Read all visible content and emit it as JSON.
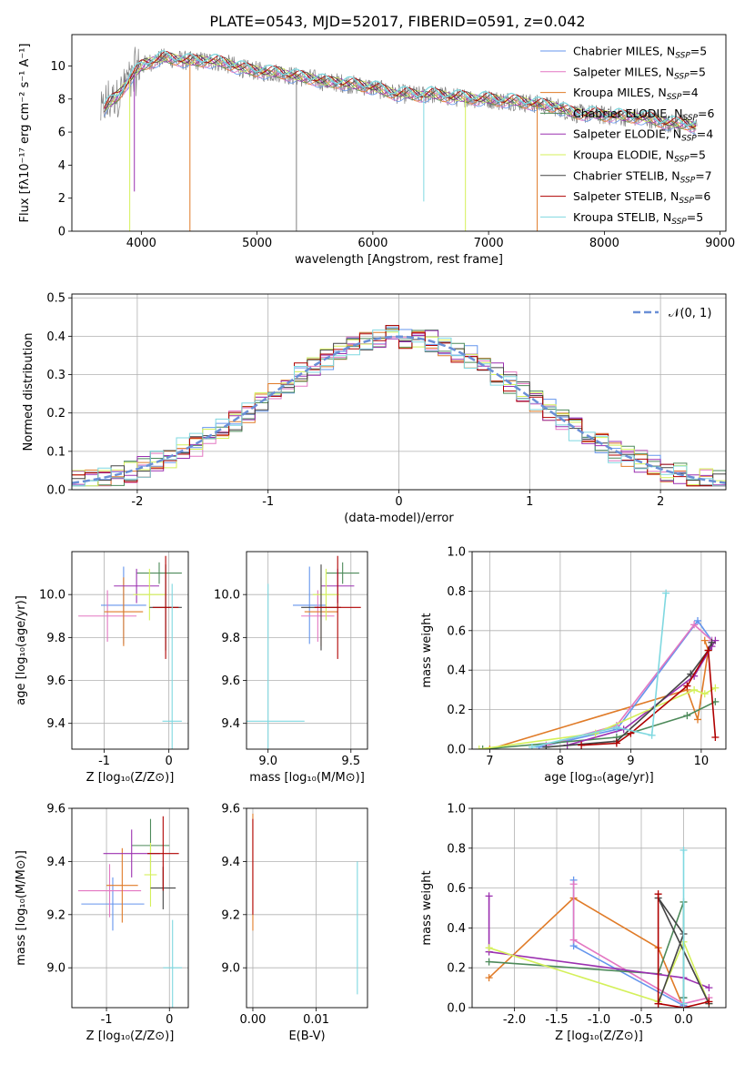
{
  "figure_title": "PLATE=0543, MJD=52017, FIBERID=0591, z=0.042",
  "colors": {
    "chabrier_miles": "#6495ed",
    "salpeter_miles": "#e377c2",
    "kroupa_miles": "#e07b28",
    "chabrier_elodie": "#4d8a5a",
    "salpeter_elodie": "#9b30b0",
    "kroupa_elodie": "#d4f05a",
    "chabrier_stelib": "#444444",
    "salpeter_stelib": "#b00000",
    "kroupa_stelib": "#7fd8e0",
    "data": "#808080",
    "gauss": "#6a8fd6"
  },
  "chart_data": [
    {
      "id": "spectrum",
      "type": "line",
      "xlabel": "wavelength [Angstrom, rest frame]",
      "ylabel": "Flux [fλ10⁻¹⁷ erg cm⁻² s⁻¹ A⁻¹]",
      "xlim": [
        3400,
        9050
      ],
      "ylim": [
        0,
        11.9
      ],
      "xticks": [
        4000,
        5000,
        6000,
        7000,
        8000,
        9000
      ],
      "yticks": [
        0,
        2,
        4,
        6,
        8,
        10
      ],
      "grid": false,
      "legend_position": "top-right",
      "continuum": {
        "x": [
          3650,
          3700,
          3800,
          3900,
          4000,
          4100,
          4200,
          4300,
          4400,
          4500,
          4600,
          4700,
          4800,
          4900,
          5000,
          5100,
          5200,
          5300,
          5400,
          5500,
          5600,
          5700,
          5800,
          5900,
          6000,
          6100,
          6200,
          6300,
          6400,
          6500,
          6600,
          6700,
          6800,
          6900,
          7000,
          7100,
          7200,
          7300,
          7400,
          7500,
          7600,
          7700,
          7800,
          7900,
          8000,
          8100,
          8200,
          8300,
          8400,
          8500,
          8600,
          8700,
          8800
        ],
        "y": [
          7.0,
          7.6,
          8.2,
          9.2,
          10.0,
          10.3,
          10.5,
          10.4,
          10.3,
          10.3,
          10.3,
          10.2,
          10.0,
          9.8,
          9.7,
          9.6,
          9.6,
          9.4,
          9.3,
          9.2,
          9.0,
          9.0,
          8.9,
          8.8,
          8.7,
          8.5,
          8.3,
          8.3,
          8.2,
          8.3,
          8.2,
          8.1,
          8.1,
          8.0,
          8.0,
          7.9,
          7.9,
          7.8,
          7.7,
          7.6,
          7.5,
          7.2,
          7.1,
          7.1,
          7.0,
          7.0,
          6.9,
          6.9,
          6.8,
          6.6,
          6.5,
          6.5,
          6.3
        ]
      },
      "series": [
        {
          "name": "Chabrier MILES",
          "nssp": 5,
          "color_key": "chabrier_miles"
        },
        {
          "name": "Salpeter MILES",
          "nssp": 5,
          "color_key": "salpeter_miles"
        },
        {
          "name": "Kroupa MILES",
          "nssp": 4,
          "color_key": "kroupa_miles"
        },
        {
          "name": "Chabrier ELODIE",
          "nssp": 6,
          "color_key": "chabrier_elodie"
        },
        {
          "name": "Salpeter ELODIE",
          "nssp": 4,
          "color_key": "salpeter_elodie"
        },
        {
          "name": "Kroupa ELODIE",
          "nssp": 5,
          "color_key": "kroupa_elodie"
        },
        {
          "name": "Chabrier STELIB",
          "nssp": 7,
          "color_key": "chabrier_stelib"
        },
        {
          "name": "Salpeter STELIB",
          "nssp": 6,
          "color_key": "salpeter_stelib"
        },
        {
          "name": "Kroupa STELIB",
          "nssp": 5,
          "color_key": "kroupa_stelib"
        }
      ]
    },
    {
      "id": "residuals",
      "type": "histogram",
      "xlabel": "(data-model)/error",
      "ylabel": "Normed distribution",
      "xlim": [
        -2.5,
        2.5
      ],
      "ylim": [
        0,
        0.51
      ],
      "xticks": [
        -2,
        -1,
        0,
        1,
        2
      ],
      "yticks": [
        0.0,
        0.1,
        0.2,
        0.3,
        0.4,
        0.5
      ],
      "grid": true,
      "legend": "𝒩(0, 1)",
      "legend_position": "top-right",
      "bin_width": 0.1
    },
    {
      "id": "age_vs_Z",
      "type": "errorbar",
      "xlabel": "Z [log₁₀(Z/Z⊙)]",
      "ylabel": "age  [log₁₀(age/yr)]",
      "xlim": [
        -1.5,
        0.3
      ],
      "ylim": [
        9.28,
        10.2
      ],
      "xticks": [
        -1,
        0
      ],
      "yticks": [
        9.4,
        9.6,
        9.8,
        10.0
      ],
      "points": [
        {
          "x": -0.7,
          "y": 9.95,
          "xerr": 0.35,
          "yerr": 0.18,
          "color_key": "chabrier_miles"
        },
        {
          "x": -0.95,
          "y": 9.9,
          "xerr": 0.45,
          "yerr": 0.12,
          "color_key": "salpeter_miles"
        },
        {
          "x": -0.7,
          "y": 9.92,
          "xerr": 0.3,
          "yerr": 0.16,
          "color_key": "kroupa_miles"
        },
        {
          "x": -0.15,
          "y": 10.1,
          "xerr": 0.35,
          "yerr": 0.05,
          "color_key": "chabrier_elodie"
        },
        {
          "x": -0.5,
          "y": 10.04,
          "xerr": 0.35,
          "yerr": 0.08,
          "color_key": "salpeter_elodie"
        },
        {
          "x": -0.3,
          "y": 10.0,
          "xerr": 0.25,
          "yerr": 0.12,
          "color_key": "kroupa_elodie"
        },
        {
          "x": -0.05,
          "y": 9.94,
          "xerr": 0.25,
          "yerr": 0.2,
          "color_key": "chabrier_stelib"
        },
        {
          "x": -0.05,
          "y": 9.94,
          "xerr": 0.2,
          "yerr": 0.24,
          "color_key": "salpeter_stelib"
        },
        {
          "x": 0.05,
          "y": 9.41,
          "xerr": 0.15,
          "yerr": 0.64,
          "color_key": "kroupa_stelib"
        }
      ]
    },
    {
      "id": "age_vs_mass",
      "type": "errorbar",
      "xlabel": "mass [log₁₀(M/M⊙)]",
      "ylabel": "",
      "xlim": [
        8.87,
        9.6
      ],
      "ylim": [
        9.28,
        10.2
      ],
      "xticks": [
        9.0,
        9.5
      ],
      "yticks": [
        9.4,
        9.6,
        9.8,
        10.0
      ],
      "points": [
        {
          "x": 9.25,
          "y": 9.95,
          "xerr": 0.1,
          "yerr": 0.18,
          "color_key": "chabrier_miles"
        },
        {
          "x": 9.3,
          "y": 9.9,
          "xerr": 0.1,
          "yerr": 0.12,
          "color_key": "salpeter_miles"
        },
        {
          "x": 9.32,
          "y": 9.92,
          "xerr": 0.1,
          "yerr": 0.16,
          "color_key": "kroupa_miles"
        },
        {
          "x": 9.45,
          "y": 10.1,
          "xerr": 0.1,
          "yerr": 0.05,
          "color_key": "chabrier_elodie"
        },
        {
          "x": 9.42,
          "y": 10.04,
          "xerr": 0.1,
          "yerr": 0.08,
          "color_key": "salpeter_elodie"
        },
        {
          "x": 9.35,
          "y": 10.0,
          "xerr": 0.08,
          "yerr": 0.12,
          "color_key": "kroupa_elodie"
        },
        {
          "x": 9.32,
          "y": 9.94,
          "xerr": 0.12,
          "yerr": 0.2,
          "color_key": "chabrier_stelib"
        },
        {
          "x": 9.42,
          "y": 9.94,
          "xerr": 0.14,
          "yerr": 0.24,
          "color_key": "salpeter_stelib"
        },
        {
          "x": 9.0,
          "y": 9.41,
          "xerr": 0.22,
          "yerr": 0.64,
          "color_key": "kroupa_stelib"
        }
      ]
    },
    {
      "id": "weight_vs_age",
      "type": "line",
      "xlabel": "age  [log₁₀(age/yr)]",
      "ylabel": "mass weight",
      "xlim": [
        6.75,
        10.35
      ],
      "ylim": [
        0,
        1.0
      ],
      "xticks": [
        7,
        8,
        9,
        10
      ],
      "yticks": [
        0.0,
        0.2,
        0.4,
        0.6,
        0.8,
        1.0
      ],
      "series": [
        {
          "color_key": "kroupa_miles",
          "x": [
            7.0,
            9.8,
            9.95,
            10.1,
            10.05
          ],
          "y": [
            0.0,
            0.3,
            0.15,
            0.5,
            0.55
          ]
        },
        {
          "color_key": "chabrier_miles",
          "x": [
            7.7,
            8.8,
            9.95,
            10.15
          ],
          "y": [
            0.01,
            0.1,
            0.65,
            0.55
          ]
        },
        {
          "color_key": "salpeter_miles",
          "x": [
            7.8,
            8.8,
            9.9,
            10.15
          ],
          "y": [
            0.02,
            0.12,
            0.63,
            0.55
          ]
        },
        {
          "color_key": "chabrier_elodie",
          "x": [
            6.9,
            8.8,
            9.8,
            10.2
          ],
          "y": [
            0.0,
            0.06,
            0.17,
            0.24
          ]
        },
        {
          "color_key": "salpeter_elodie",
          "x": [
            8.1,
            8.9,
            9.9,
            10.15,
            10.2
          ],
          "y": [
            0.02,
            0.1,
            0.37,
            0.52,
            0.55
          ]
        },
        {
          "color_key": "kroupa_elodie",
          "x": [
            6.85,
            8.5,
            9.9,
            10.05,
            10.2
          ],
          "y": [
            0.0,
            0.08,
            0.3,
            0.28,
            0.31
          ]
        },
        {
          "color_key": "chabrier_stelib",
          "x": [
            7.8,
            8.8,
            9.85,
            10.1,
            10.15
          ],
          "y": [
            0.01,
            0.04,
            0.38,
            0.5,
            0.54
          ]
        },
        {
          "color_key": "salpeter_stelib",
          "x": [
            8.3,
            8.8,
            9.0,
            9.8,
            10.1,
            10.2
          ],
          "y": [
            0.02,
            0.03,
            0.08,
            0.32,
            0.5,
            0.06
          ]
        },
        {
          "color_key": "kroupa_stelib",
          "x": [
            7.6,
            8.8,
            9.3,
            9.5
          ],
          "y": [
            0.01,
            0.11,
            0.07,
            0.79
          ]
        }
      ]
    },
    {
      "id": "mass_vs_Z",
      "type": "errorbar",
      "xlabel": "Z [log₁₀(Z/Z⊙)]",
      "ylabel": "mass [log₁₀(M/M⊙)]",
      "xlim": [
        -1.55,
        0.3
      ],
      "ylim": [
        8.85,
        9.6
      ],
      "xticks": [
        -1,
        0
      ],
      "yticks": [
        9.0,
        9.2,
        9.4,
        9.6
      ],
      "points": [
        {
          "x": -0.9,
          "y": 9.24,
          "xerr": 0.5,
          "yerr": 0.1,
          "color_key": "chabrier_miles"
        },
        {
          "x": -0.95,
          "y": 9.29,
          "xerr": 0.5,
          "yerr": 0.1,
          "color_key": "salpeter_miles"
        },
        {
          "x": -0.75,
          "y": 9.31,
          "xerr": 0.25,
          "yerr": 0.14,
          "color_key": "kroupa_miles"
        },
        {
          "x": -0.3,
          "y": 9.46,
          "xerr": 0.3,
          "yerr": 0.1,
          "color_key": "chabrier_elodie"
        },
        {
          "x": -0.6,
          "y": 9.43,
          "xerr": 0.45,
          "yerr": 0.09,
          "color_key": "salpeter_elodie"
        },
        {
          "x": -0.3,
          "y": 9.35,
          "xerr": 0.1,
          "yerr": 0.12,
          "color_key": "kroupa_elodie"
        },
        {
          "x": -0.1,
          "y": 9.3,
          "xerr": 0.2,
          "yerr": 0.08,
          "color_key": "chabrier_stelib"
        },
        {
          "x": -0.1,
          "y": 9.43,
          "xerr": 0.25,
          "yerr": 0.14,
          "color_key": "salpeter_stelib"
        },
        {
          "x": 0.05,
          "y": 9.0,
          "xerr": 0.15,
          "yerr": 0.18,
          "color_key": "kroupa_stelib"
        }
      ]
    },
    {
      "id": "mass_vs_ebv",
      "type": "errorbar",
      "xlabel": "E(B-V)",
      "ylabel": "",
      "xlim": [
        -0.001,
        0.0181
      ],
      "ylim": [
        8.85,
        9.6
      ],
      "xticks": [
        0.0,
        0.01
      ],
      "xticklabels": [
        "0.00",
        "0.01"
      ],
      "yticks": [
        9.0,
        9.2,
        9.4,
        9.6
      ],
      "points": [
        {
          "x": 0.0,
          "y": 9.36,
          "xerr": 0.0,
          "yerr": 0.22,
          "color_key": "kroupa_miles"
        },
        {
          "x": 0.0,
          "y": 9.38,
          "xerr": 0.0,
          "yerr": 0.18,
          "color_key": "salpeter_stelib"
        },
        {
          "x": 0.0165,
          "y": 9.15,
          "xerr": 0.0,
          "yerr": 0.25,
          "color_key": "kroupa_stelib"
        }
      ]
    },
    {
      "id": "weight_vs_Z",
      "type": "line",
      "xlabel": "Z [log₁₀(Z/Z⊙)]",
      "ylabel": "mass weight",
      "xlim": [
        -2.5,
        0.5
      ],
      "ylim": [
        0,
        1.0
      ],
      "xticks": [
        -2.0,
        -1.5,
        -1.0,
        -0.5,
        0.0
      ],
      "yticks": [
        0.0,
        0.2,
        0.4,
        0.6,
        0.8,
        1.0
      ],
      "series": [
        {
          "color_key": "kroupa_miles",
          "x": [
            -2.3,
            -1.3,
            -0.3,
            0.0
          ],
          "y": [
            0.15,
            0.55,
            0.3,
            0.0
          ]
        },
        {
          "color_key": "chabrier_miles",
          "x": [
            -1.3,
            -1.3,
            0.0,
            0.0
          ],
          "y": [
            0.64,
            0.31,
            0.01,
            0.05
          ]
        },
        {
          "color_key": "salpeter_miles",
          "x": [
            -1.3,
            -1.3,
            0.0,
            0.3
          ],
          "y": [
            0.62,
            0.34,
            0.02,
            0.05
          ]
        },
        {
          "color_key": "chabrier_elodie",
          "x": [
            -2.3,
            -0.3,
            0.0,
            0.0
          ],
          "y": [
            0.23,
            0.17,
            0.53,
            0.05
          ]
        },
        {
          "color_key": "salpeter_elodie",
          "x": [
            -2.3,
            -2.3,
            0.0,
            0.3
          ],
          "y": [
            0.56,
            0.28,
            0.15,
            0.1
          ]
        },
        {
          "color_key": "kroupa_elodie",
          "x": [
            -2.3,
            -0.3,
            0.0,
            0.3
          ],
          "y": [
            0.3,
            0.03,
            0.33,
            0.02
          ]
        },
        {
          "color_key": "chabrier_stelib",
          "x": [
            -0.3,
            0.0,
            -0.3,
            0.3
          ],
          "y": [
            0.02,
            0.37,
            0.55,
            0.02
          ]
        },
        {
          "color_key": "salpeter_stelib",
          "x": [
            -0.3,
            -0.3,
            0.0,
            0.3
          ],
          "y": [
            0.57,
            0.02,
            0.0,
            0.03
          ]
        },
        {
          "color_key": "kroupa_stelib",
          "x": [
            0.0,
            0.0
          ],
          "y": [
            0.79,
            0.02
          ]
        }
      ]
    }
  ]
}
